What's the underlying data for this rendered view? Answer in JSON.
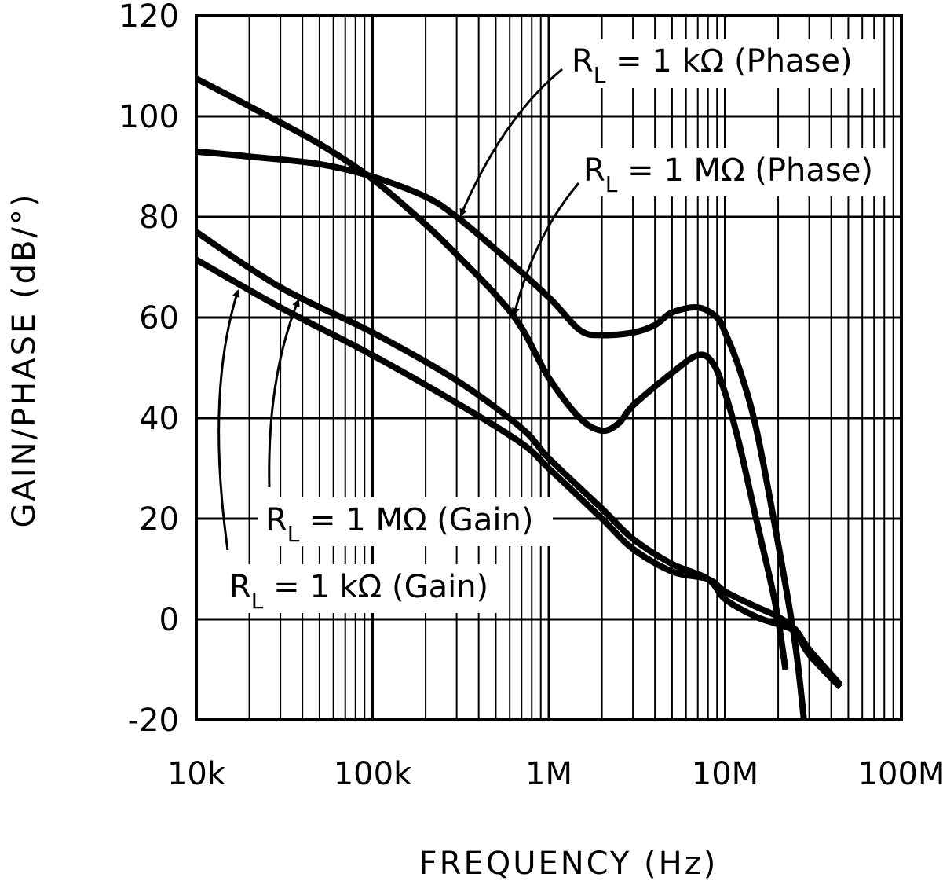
{
  "chart_data": {
    "type": "line",
    "xlabel": "FREQUENCY (Hz)",
    "ylabel": "GAIN/PHASE (dB/°)",
    "x_scale": "log",
    "xlim": [
      10000,
      100000000
    ],
    "ylim": [
      -20,
      120
    ],
    "grid": true,
    "x_ticks": [
      {
        "value": 10000,
        "label": "10k"
      },
      {
        "value": 100000,
        "label": "100k"
      },
      {
        "value": 1000000,
        "label": "1M"
      },
      {
        "value": 10000000,
        "label": "10M"
      },
      {
        "value": 100000000,
        "label": "100M"
      }
    ],
    "y_ticks": [
      {
        "value": 120,
        "label": "120"
      },
      {
        "value": 100,
        "label": "100"
      },
      {
        "value": 80,
        "label": "80"
      },
      {
        "value": 60,
        "label": "60"
      },
      {
        "value": 40,
        "label": "40"
      },
      {
        "value": 20,
        "label": "20"
      },
      {
        "value": 0,
        "label": "0"
      },
      {
        "value": -20,
        "label": "-20"
      }
    ],
    "series": [
      {
        "key": "phase_1k",
        "name": "RL = 1 kΩ (Phase)",
        "points": [
          [
            10000,
            93
          ],
          [
            20000,
            92
          ],
          [
            50000,
            90.5
          ],
          [
            100000,
            88
          ],
          [
            200000,
            84
          ],
          [
            300000,
            80
          ],
          [
            500000,
            73.5
          ],
          [
            1000000,
            64
          ],
          [
            1500000,
            57.5
          ],
          [
            2000000,
            56.5
          ],
          [
            3000000,
            57
          ],
          [
            4000000,
            58.5
          ],
          [
            5000000,
            61
          ],
          [
            7000000,
            62
          ],
          [
            9000000,
            60
          ],
          [
            10000000,
            57
          ],
          [
            12000000,
            50
          ],
          [
            15000000,
            38
          ],
          [
            20000000,
            15
          ],
          [
            25000000,
            -5
          ],
          [
            28000000,
            -20
          ]
        ]
      },
      {
        "key": "phase_1m",
        "name": "RL = 1 MΩ (Phase)",
        "points": [
          [
            10000,
            107.5
          ],
          [
            20000,
            102
          ],
          [
            50000,
            94.5
          ],
          [
            100000,
            87.5
          ],
          [
            200000,
            78.5
          ],
          [
            300000,
            72.5
          ],
          [
            500000,
            64.5
          ],
          [
            700000,
            58
          ],
          [
            1000000,
            48
          ],
          [
            1500000,
            40
          ],
          [
            2000000,
            37.5
          ],
          [
            2500000,
            39
          ],
          [
            3000000,
            42.5
          ],
          [
            5000000,
            49
          ],
          [
            7000000,
            52.5
          ],
          [
            8500000,
            51
          ],
          [
            10000000,
            45
          ],
          [
            12000000,
            35
          ],
          [
            15000000,
            20
          ],
          [
            18000000,
            8
          ],
          [
            20000000,
            0
          ],
          [
            22000000,
            -10
          ]
        ]
      },
      {
        "key": "gain_1m",
        "name": "RL = 1 MΩ (Gain)",
        "points": [
          [
            10000,
            77
          ],
          [
            30000,
            66
          ],
          [
            100000,
            57
          ],
          [
            300000,
            47.5
          ],
          [
            700000,
            38
          ],
          [
            1000000,
            32
          ],
          [
            2000000,
            22
          ],
          [
            3000000,
            16
          ],
          [
            5000000,
            11
          ],
          [
            8000000,
            8
          ],
          [
            10000000,
            4
          ],
          [
            15000000,
            0.5
          ],
          [
            20000000,
            -1
          ],
          [
            25000000,
            -2.5
          ],
          [
            30000000,
            -7
          ],
          [
            45000000,
            -13.5
          ]
        ]
      },
      {
        "key": "gain_1k",
        "name": "RL = 1 kΩ (Gain)",
        "points": [
          [
            10000,
            71.5
          ],
          [
            30000,
            62
          ],
          [
            100000,
            52.5
          ],
          [
            300000,
            43
          ],
          [
            700000,
            35
          ],
          [
            1000000,
            30
          ],
          [
            2000000,
            20
          ],
          [
            3000000,
            14
          ],
          [
            5000000,
            9.5
          ],
          [
            8000000,
            8
          ],
          [
            10000000,
            5.5
          ],
          [
            15000000,
            2.5
          ],
          [
            20000000,
            0.5
          ],
          [
            25000000,
            -2
          ],
          [
            30000000,
            -6
          ],
          [
            45000000,
            -13
          ]
        ]
      }
    ],
    "annotations": [
      {
        "key": "phase_1k",
        "main": "R",
        "sub": "L",
        "rest": " = 1 kΩ  (Phase)"
      },
      {
        "key": "phase_1m",
        "main": "R",
        "sub": "L",
        "rest": " = 1 MΩ  (Phase)"
      },
      {
        "key": "gain_1m",
        "main": "R",
        "sub": "L",
        "rest": " = 1 MΩ  (Gain)"
      },
      {
        "key": "gain_1k",
        "main": "R",
        "sub": "L",
        "rest": " = 1 kΩ  (Gain)"
      }
    ]
  }
}
